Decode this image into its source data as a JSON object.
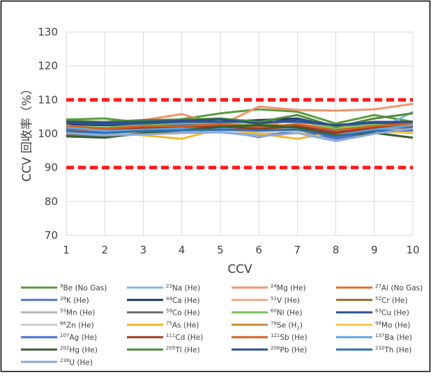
{
  "chart_data": {
    "type": "line",
    "title": "",
    "xlabel": "CCV",
    "ylabel": "CCV 回收率（%）",
    "ylim": [
      70,
      130
    ],
    "yticks": [
      70,
      80,
      90,
      100,
      110,
      120,
      130
    ],
    "x": [
      1,
      2,
      3,
      4,
      5,
      6,
      7,
      8,
      9,
      10
    ],
    "grid": true,
    "legend_position": "bottom",
    "reference_lines": [
      {
        "value": 110,
        "color": "#ff1a1a",
        "style": "dashed"
      },
      {
        "value": 90,
        "color": "#ff1a1a",
        "style": "dashed"
      }
    ],
    "series": [
      {
        "iso": "9",
        "el": "Be",
        "mode": " (No Gas)",
        "sub": "",
        "mode_end": "",
        "color": "#5b9b3d",
        "values": [
          104.2,
          104.5,
          103.2,
          104.3,
          106.0,
          107.2,
          106.5,
          103.0,
          105.5,
          103.5
        ]
      },
      {
        "iso": "23",
        "el": "Na",
        "mode": " (He)",
        "sub": "",
        "mode_end": "",
        "color": "#7eb6e0",
        "values": [
          100.5,
          99.8,
          100.2,
          101.0,
          100.8,
          99.5,
          102.0,
          98.8,
          100.5,
          106.5
        ]
      },
      {
        "iso": "24",
        "el": "Mg",
        "mode": " (He)",
        "sub": "",
        "mode_end": "",
        "color": "#f4936a",
        "values": [
          102.0,
          101.5,
          104.0,
          105.8,
          102.5,
          108.0,
          107.0,
          106.8,
          107.2,
          108.8
        ]
      },
      {
        "iso": "27",
        "el": "Al",
        "mode": " (No Gas)",
        "sub": "",
        "mode_end": "",
        "color": "#e26b2a",
        "values": [
          101.0,
          100.5,
          101.5,
          102.8,
          101.5,
          103.0,
          102.0,
          101.2,
          101.5,
          102.2
        ]
      },
      {
        "iso": "39",
        "el": "K",
        "mode": " (He)",
        "sub": "",
        "mode_end": "",
        "color": "#5574c0",
        "values": [
          99.5,
          99.0,
          100.0,
          100.5,
          101.0,
          99.0,
          101.0,
          98.5,
          100.5,
          101.0
        ]
      },
      {
        "iso": "44",
        "el": "Ca",
        "mode": " (He)",
        "sub": "",
        "mode_end": "",
        "color": "#1f3864",
        "values": [
          102.8,
          102.5,
          102.8,
          103.0,
          103.5,
          104.0,
          104.5,
          102.0,
          103.0,
          103.2
        ]
      },
      {
        "iso": "51",
        "el": "V",
        "mode": " (He)",
        "sub": "",
        "mode_end": "",
        "color": "#f5a97e",
        "values": [
          101.5,
          101.0,
          101.8,
          102.0,
          102.2,
          101.5,
          102.8,
          101.8,
          102.5,
          102.0
        ]
      },
      {
        "iso": "52",
        "el": "Cr",
        "mode": " (He)",
        "sub": "",
        "mode_end": "",
        "color": "#8b6a2f",
        "values": [
          100.0,
          99.5,
          100.8,
          101.5,
          101.0,
          100.5,
          101.5,
          100.0,
          101.2,
          101.0
        ]
      },
      {
        "iso": "55",
        "el": "Mn",
        "mode": " (He)",
        "sub": "",
        "mode_end": "",
        "color": "#b5b5b5",
        "values": [
          100.8,
          100.2,
          101.2,
          101.8,
          101.5,
          100.8,
          101.8,
          100.5,
          101.5,
          101.5
        ]
      },
      {
        "iso": "59",
        "el": "Co",
        "mode": " (He)",
        "sub": "",
        "mode_end": "",
        "color": "#6f6f6f",
        "values": [
          101.2,
          100.8,
          101.5,
          102.2,
          102.0,
          101.0,
          102.2,
          100.8,
          101.8,
          101.8
        ]
      },
      {
        "iso": "60",
        "el": "Ni",
        "mode": " (He)",
        "sub": "",
        "mode_end": "",
        "color": "#7dc35b",
        "values": [
          102.2,
          101.8,
          102.5,
          103.0,
          103.0,
          102.5,
          104.0,
          101.5,
          102.8,
          102.5
        ]
      },
      {
        "iso": "63",
        "el": "Cu",
        "mode": " (He)",
        "sub": "",
        "mode_end": "",
        "color": "#2e5597",
        "values": [
          103.2,
          102.8,
          103.0,
          103.5,
          103.5,
          103.5,
          103.5,
          102.5,
          103.2,
          103.0
        ]
      },
      {
        "iso": "66",
        "el": "Zn",
        "mode": " (He)",
        "sub": "",
        "mode_end": "",
        "color": "#cfcfcf",
        "values": [
          100.2,
          99.8,
          100.5,
          101.2,
          100.8,
          100.2,
          101.2,
          99.8,
          100.8,
          101.2
        ]
      },
      {
        "iso": "75",
        "el": "As",
        "mode": " (He)",
        "sub": "",
        "mode_end": "",
        "color": "#f5b731",
        "values": [
          102.5,
          100.5,
          99.5,
          98.5,
          101.5,
          100.0,
          98.5,
          100.5,
          101.0,
          100.2
        ]
      },
      {
        "iso": "78",
        "el": "Se",
        "mode": " (H",
        "sub": "2",
        "mode_end": ")",
        "color": "#c8902f",
        "values": [
          101.8,
          100.5,
          101.0,
          101.2,
          101.8,
          101.2,
          101.5,
          100.2,
          101.0,
          100.8
        ]
      },
      {
        "iso": "98",
        "el": "Mo",
        "mode": " (He)",
        "sub": "",
        "mode_end": "",
        "color": "#f7c64b",
        "values": [
          101.0,
          100.2,
          100.5,
          100.8,
          101.2,
          100.8,
          100.8,
          99.8,
          100.5,
          100.5
        ]
      },
      {
        "iso": "107",
        "el": "Ag",
        "mode": " (He)",
        "sub": "",
        "mode_end": "",
        "color": "#4a6fd1",
        "values": [
          102.0,
          101.2,
          102.0,
          102.5,
          102.5,
          101.8,
          102.5,
          100.5,
          102.0,
          102.0
        ]
      },
      {
        "iso": "111",
        "el": "Cd",
        "mode": " (He)",
        "sub": "",
        "mode_end": "",
        "color": "#9a3a1e",
        "values": [
          101.5,
          100.8,
          101.8,
          102.0,
          102.0,
          101.5,
          102.2,
          100.2,
          101.8,
          102.2
        ]
      },
      {
        "iso": "121",
        "el": "Sb",
        "mode": " (He)",
        "sub": "",
        "mode_end": "",
        "color": "#d45f22",
        "values": [
          102.2,
          101.5,
          102.2,
          102.2,
          102.8,
          102.0,
          102.8,
          101.0,
          102.2,
          103.0
        ]
      },
      {
        "iso": "137",
        "el": "Ba",
        "mode": " (He)",
        "sub": "",
        "mode_end": "",
        "color": "#62a6dd",
        "values": [
          101.8,
          100.8,
          101.2,
          101.5,
          101.5,
          100.8,
          101.5,
          99.5,
          101.2,
          102.5
        ]
      },
      {
        "iso": "202",
        "el": "Hg",
        "mode": " (He)",
        "sub": "",
        "mode_end": "",
        "color": "#3a5f2a",
        "values": [
          99.2,
          98.8,
          100.2,
          101.0,
          102.0,
          102.5,
          101.8,
          99.5,
          100.2,
          98.8
        ]
      },
      {
        "iso": "205",
        "el": "Tl",
        "mode": " (He)",
        "sub": "",
        "mode_end": "",
        "color": "#4f8a3a",
        "values": [
          103.8,
          103.5,
          104.0,
          104.2,
          104.5,
          103.5,
          105.5,
          102.0,
          104.5,
          106.0
        ]
      },
      {
        "iso": "208",
        "el": "Pb",
        "mode": " (He)",
        "sub": "",
        "mode_end": "",
        "color": "#2f4d8f",
        "values": [
          103.5,
          103.2,
          103.5,
          103.8,
          104.2,
          103.0,
          104.2,
          102.5,
          103.5,
          103.5
        ]
      },
      {
        "iso": "232",
        "el": "Th",
        "mode": " (He)",
        "sub": "",
        "mode_end": "",
        "color": "#2a6fb5",
        "values": [
          100.8,
          100.2,
          100.8,
          101.0,
          101.2,
          101.0,
          101.2,
          99.2,
          100.8,
          101.0
        ]
      },
      {
        "iso": "238",
        "el": "U",
        "mode": " (He)",
        "sub": "",
        "mode_end": "",
        "color": "#8ea9db",
        "values": [
          100.2,
          99.5,
          99.8,
          100.2,
          100.5,
          99.2,
          100.2,
          97.8,
          100.0,
          101.5
        ]
      }
    ]
  }
}
